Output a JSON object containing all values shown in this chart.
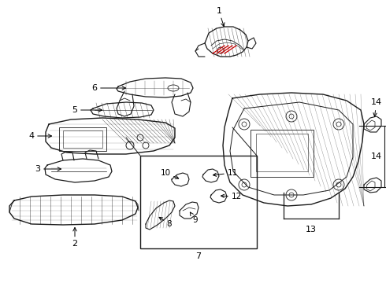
{
  "bg_color": "#ffffff",
  "line_color": "#1a1a1a",
  "red_color": "#cc0000",
  "fig_width": 4.9,
  "fig_height": 3.6,
  "dpi": 100
}
